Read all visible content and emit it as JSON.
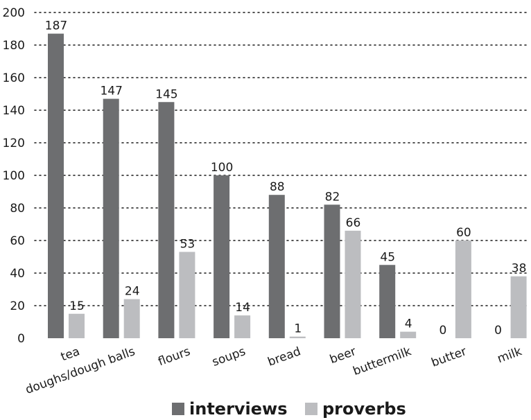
{
  "chart_data": {
    "type": "bar",
    "categories": [
      "tea",
      "doughs/dough balls",
      "flours",
      "soups",
      "bread",
      "beer",
      "buttermilk",
      "butter",
      "milk"
    ],
    "series": [
      {
        "name": "interviews",
        "color": "#6d6e70",
        "values": [
          187,
          147,
          145,
          100,
          88,
          82,
          45,
          0,
          0
        ]
      },
      {
        "name": "proverbs",
        "color": "#bcbdc0",
        "values": [
          15,
          24,
          53,
          14,
          1,
          66,
          4,
          60,
          38
        ]
      }
    ],
    "ylim": [
      0,
      200
    ],
    "yticks": [
      0,
      20,
      40,
      60,
      80,
      100,
      120,
      140,
      160,
      180,
      200
    ],
    "grid": true,
    "legend": "bottom-center",
    "xlabel": "",
    "ylabel": ""
  }
}
